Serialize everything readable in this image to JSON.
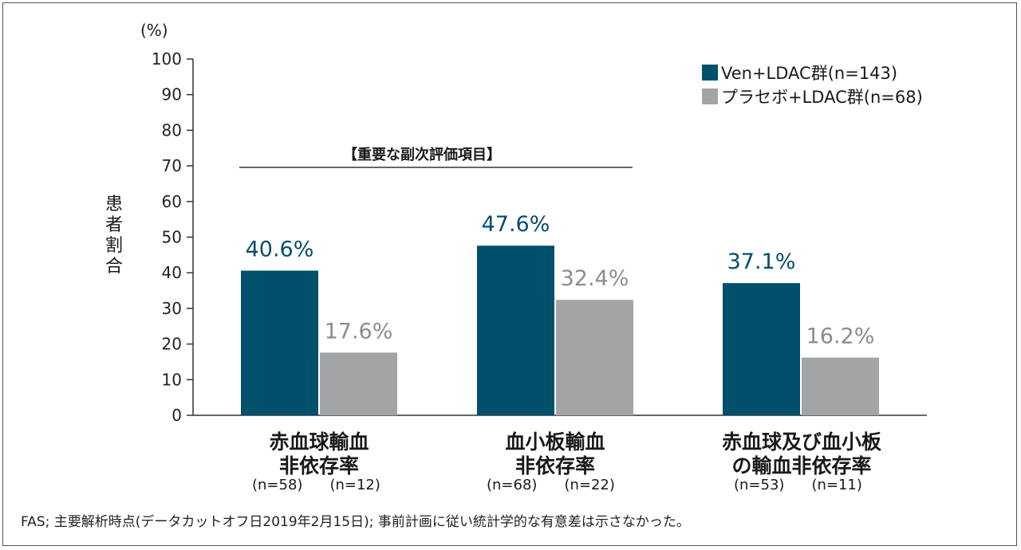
{
  "chart_data": {
    "type": "bar",
    "unit_label": "(%)",
    "ylabel": "患者割合",
    "ylim": [
      0,
      100
    ],
    "yticks": [
      0,
      10,
      20,
      30,
      40,
      50,
      60,
      70,
      80,
      90,
      100
    ],
    "categories": [
      {
        "line1": "赤血球輸血",
        "line2": "非依存率",
        "n1": "(n=58)",
        "n2": "(n=12)"
      },
      {
        "line1": "血小板輸血",
        "line2": "非依存率",
        "n1": "(n=68)",
        "n2": "(n=22)"
      },
      {
        "line1": "赤血球及び血小板",
        "line2": "の輸血非依存率",
        "n1": "(n=53)",
        "n2": "(n=11)"
      }
    ],
    "series": [
      {
        "name": "Ven+LDAC群(n=143)",
        "color": "#004f6b",
        "values": [
          40.6,
          47.6,
          37.1
        ],
        "labels": [
          "40.6%",
          "47.6%",
          "37.1%"
        ]
      },
      {
        "name": "プラセボ+LDAC群(n=68)",
        "color": "#a2a4a6",
        "values": [
          17.6,
          32.4,
          16.2
        ],
        "labels": [
          "17.6%",
          "32.4%",
          "16.2%"
        ]
      }
    ],
    "annotation": "【重要な副次評価項目】",
    "legend_position": "top-right"
  },
  "footnote": "FAS; 主要解析時点(データカットオフ日2019年2月15日); 事前計画に従い統計学的な有意差は示さなかった。"
}
